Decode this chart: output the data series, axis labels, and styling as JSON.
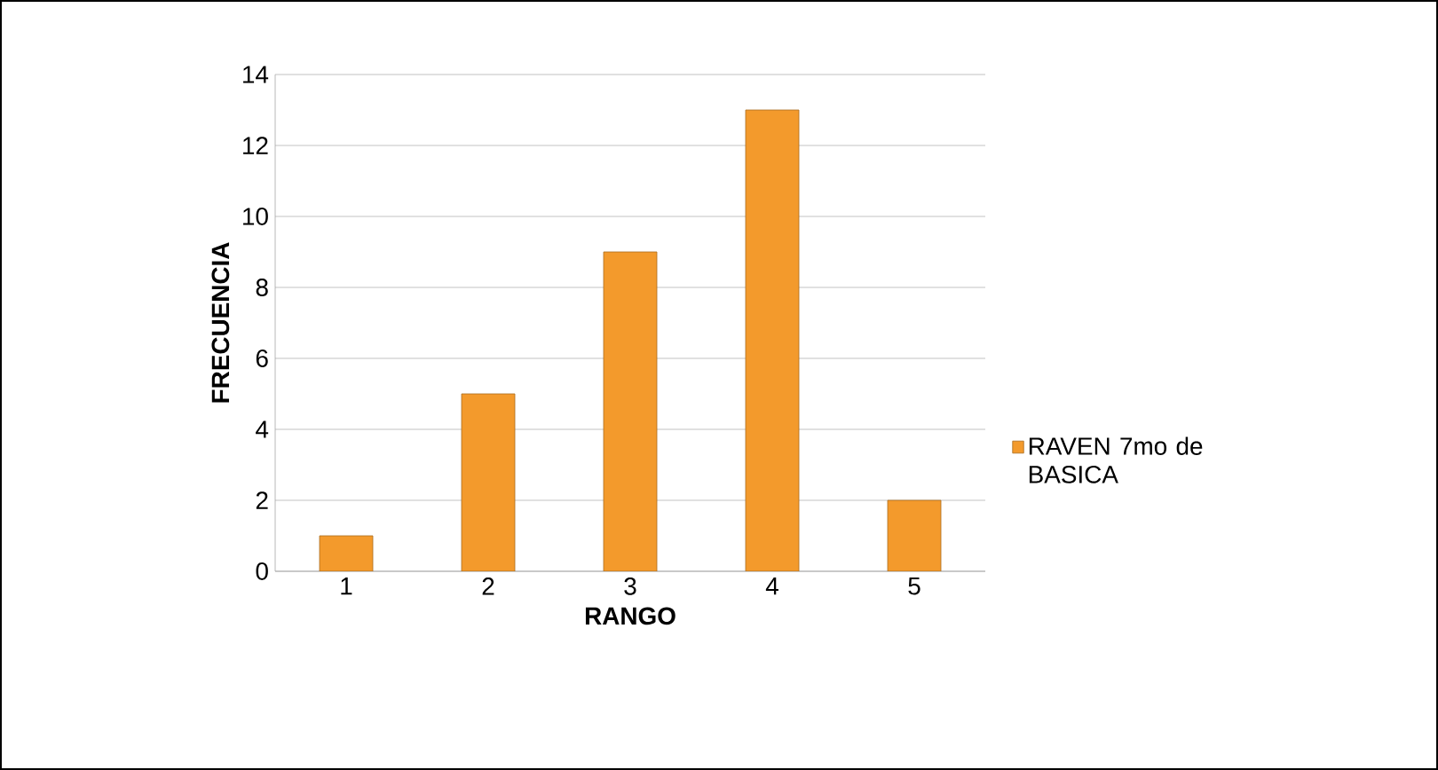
{
  "chart_data": {
    "type": "bar",
    "xlabel": "RANGO",
    "ylabel": "FRECUENCIA",
    "categories": [
      "1",
      "2",
      "3",
      "4",
      "5"
    ],
    "series": [
      {
        "name": "RAVEN 7mo de BASICA",
        "color": "#f39a2c",
        "values": [
          1,
          5,
          9,
          13,
          2
        ]
      }
    ],
    "ylim": [
      0,
      14
    ],
    "yticks": [
      0,
      2,
      4,
      6,
      8,
      10,
      12,
      14
    ],
    "grid": "y",
    "legend": "right"
  }
}
